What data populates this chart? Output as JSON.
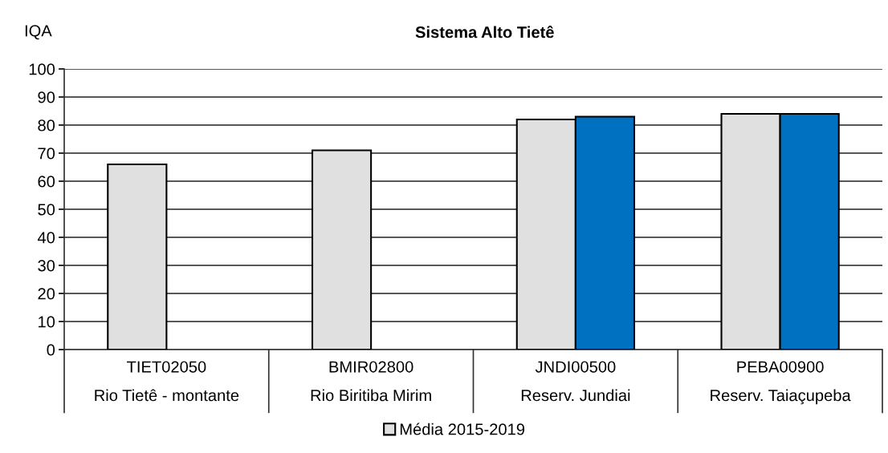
{
  "chart_data": {
    "type": "bar",
    "title": "Sistema Alto Tietê",
    "ylabel": "IQA",
    "categories": [
      "TIET02050\nRio Tietê - montante",
      "BMIR02800\nRio Biritiba Mirim",
      "JNDI00500\nReserv. Jundiai",
      "PEBA00900\nReserv. Taiaçupeba"
    ],
    "series": [
      {
        "name": "Média 2015-2019",
        "color": "#e0e0e0",
        "values": [
          66,
          71,
          82,
          84
        ]
      },
      {
        "color": "#0070c0",
        "values": [
          null,
          null,
          83,
          84
        ]
      }
    ],
    "ylim": [
      0,
      100
    ],
    "yticks": [
      0,
      10,
      20,
      30,
      40,
      50,
      60,
      70,
      80,
      90,
      100
    ],
    "grid": "y",
    "legend": "bottom"
  }
}
